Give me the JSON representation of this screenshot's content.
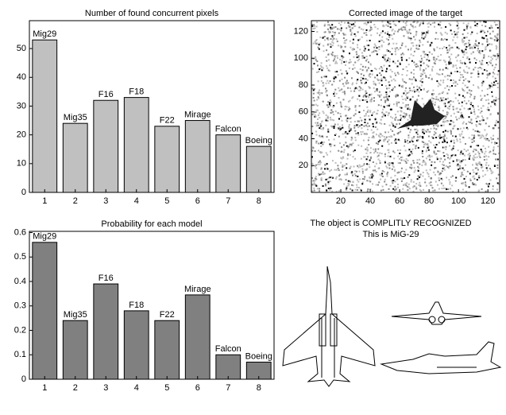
{
  "chart_data": [
    {
      "type": "bar",
      "title": "Number of found concurrent pixels",
      "categories": [
        "1",
        "2",
        "3",
        "4",
        "5",
        "6",
        "7",
        "8"
      ],
      "values": [
        53,
        24,
        32,
        33,
        23,
        25,
        20,
        16
      ],
      "bar_labels": [
        "Mig29",
        "Mig35",
        "F16",
        "F18",
        "F22",
        "Mirage",
        "Falcon",
        "Boeing"
      ],
      "color": "#c0c0c0",
      "ylim": [
        0,
        59.7
      ],
      "yticks": [
        0,
        10,
        20,
        30,
        40,
        50
      ]
    },
    {
      "type": "image",
      "title": "Corrected image of the target",
      "xlim": [
        0,
        128
      ],
      "ylim": [
        0,
        128
      ],
      "xticks": [
        20,
        40,
        60,
        80,
        100,
        120
      ],
      "yticks": [
        20,
        40,
        60,
        80,
        100,
        120
      ]
    },
    {
      "type": "bar",
      "title": "Probability for each model",
      "categories": [
        "1",
        "2",
        "3",
        "4",
        "5",
        "6",
        "7",
        "8"
      ],
      "values": [
        0.56,
        0.24,
        0.39,
        0.28,
        0.24,
        0.345,
        0.1,
        0.07
      ],
      "bar_labels": [
        "Mig29",
        "Mig35",
        "F16",
        "F18",
        "F22",
        "Mirage",
        "Falcon",
        "Boeing"
      ],
      "color": "#808080",
      "ylim": [
        0,
        0.605
      ],
      "yticks": [
        0,
        0.1,
        0.2,
        0.3,
        0.4,
        0.5,
        0.6
      ]
    }
  ],
  "result": {
    "line1": "The object is COMPLITLY RECOGNIZED",
    "line2": "This is MiG-29"
  }
}
